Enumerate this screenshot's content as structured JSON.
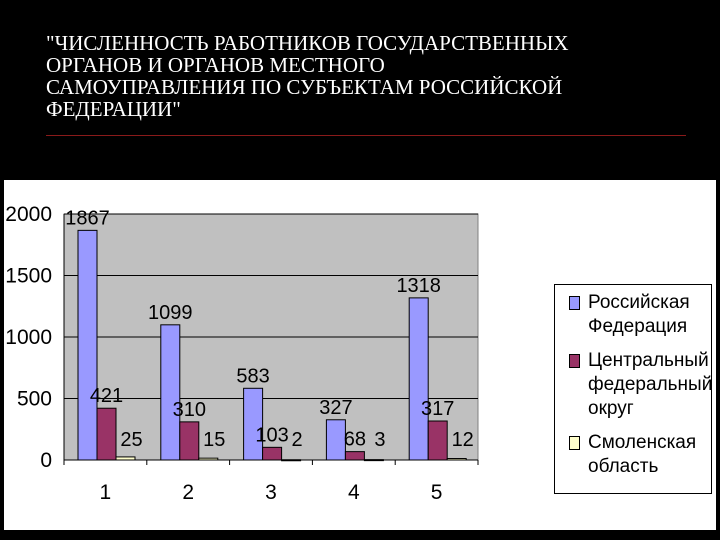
{
  "title": "\"ЧИСЛЕННОСТЬ РАБОТНИКОВ ГОСУДАРСТВЕННЫХ\nОРГАНОВ И ОРГАНОВ МЕСТНОГО\nСАМОУПРАВЛЕНИЯ ПО СУБЪЕКТАМ РОССИЙСКОЙ\nФЕДЕРАЦИИ\"",
  "chart_data": {
    "type": "bar",
    "categories": [
      "1",
      "2",
      "3",
      "4",
      "5"
    ],
    "ylim": [
      0,
      2000
    ],
    "yticks": [
      0,
      500,
      1000,
      1500,
      2000
    ],
    "grid": true,
    "legend_position": "right",
    "series": [
      {
        "name": "Российская Федерация",
        "values": [
          1867,
          1099,
          583,
          327,
          1318
        ],
        "color": "#9999ff"
      },
      {
        "name": "Центральный федеральный округ",
        "values": [
          421,
          310,
          103,
          68,
          317
        ],
        "color": "#993366"
      },
      {
        "name": "Смоленская область",
        "values": [
          25,
          15,
          2,
          3,
          12
        ],
        "color": "#ffffcc"
      }
    ],
    "data_labels": true
  },
  "colors": {
    "plot_area": "#c0c0c0",
    "background": "#000000",
    "panel": "#ffffff"
  }
}
